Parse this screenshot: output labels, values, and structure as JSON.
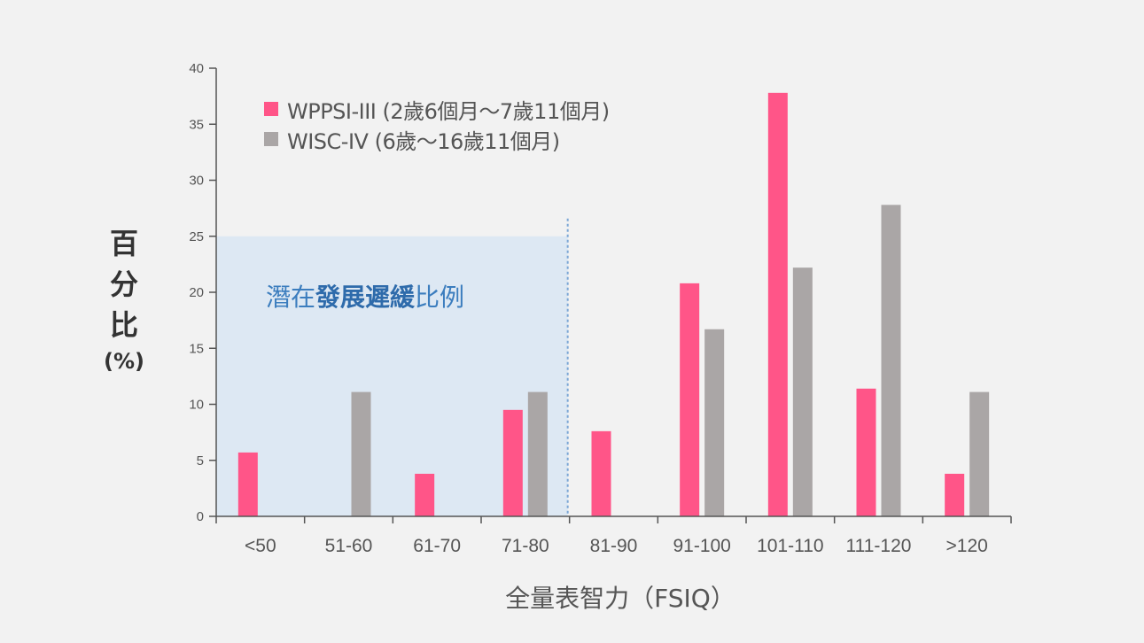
{
  "chart_data": {
    "type": "bar",
    "categories": [
      "<50",
      "51-60",
      "61-70",
      "71-80",
      "81-90",
      "91-100",
      "101-110",
      "111-120",
      ">120"
    ],
    "series": [
      {
        "name": "WPPSI-III (2歲6個月～7歲11個月)",
        "values": [
          5.7,
          0,
          3.8,
          9.5,
          7.6,
          20.8,
          37.8,
          11.4,
          3.8
        ]
      },
      {
        "name": "WISC-IV (6歲～16歲11個月)",
        "values": [
          0,
          11.1,
          0,
          11.1,
          0,
          16.7,
          22.2,
          27.8,
          11.1
        ]
      }
    ],
    "ylim": [
      0,
      40
    ],
    "yticks": [
      0,
      5,
      10,
      15,
      20,
      25,
      30,
      35,
      40
    ],
    "ylabel_chars": [
      "百",
      "分",
      "比"
    ],
    "ylabel_unit": "(%)",
    "xlabel": "全量表智力（FSIQ）",
    "legend_position": "top-left",
    "region": {
      "x_range": [
        "<50",
        "71-80"
      ],
      "y_max": 25,
      "label_pre": "潛在",
      "label_bold": "發展遲緩",
      "label_post": "比例"
    },
    "colors": {
      "series1": "#ff5588",
      "series2": "#aaa6a6",
      "region_fill": "#dde8f3",
      "region_line": "#7aa6d6",
      "axis": "#555555"
    }
  }
}
